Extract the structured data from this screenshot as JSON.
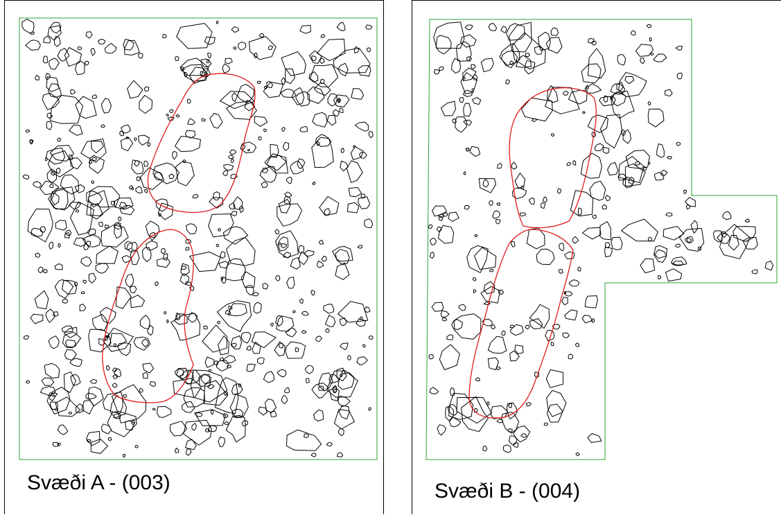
{
  "panels": [
    {
      "id": "a",
      "caption": "Svæði A - (003)"
    },
    {
      "id": "b",
      "caption": "Svæði B - (004)"
    }
  ],
  "colors": {
    "boundary": "#2ca02c",
    "feature_outline": "#e0191b",
    "stone_outline": "#000000",
    "panel_border": "#000000"
  }
}
